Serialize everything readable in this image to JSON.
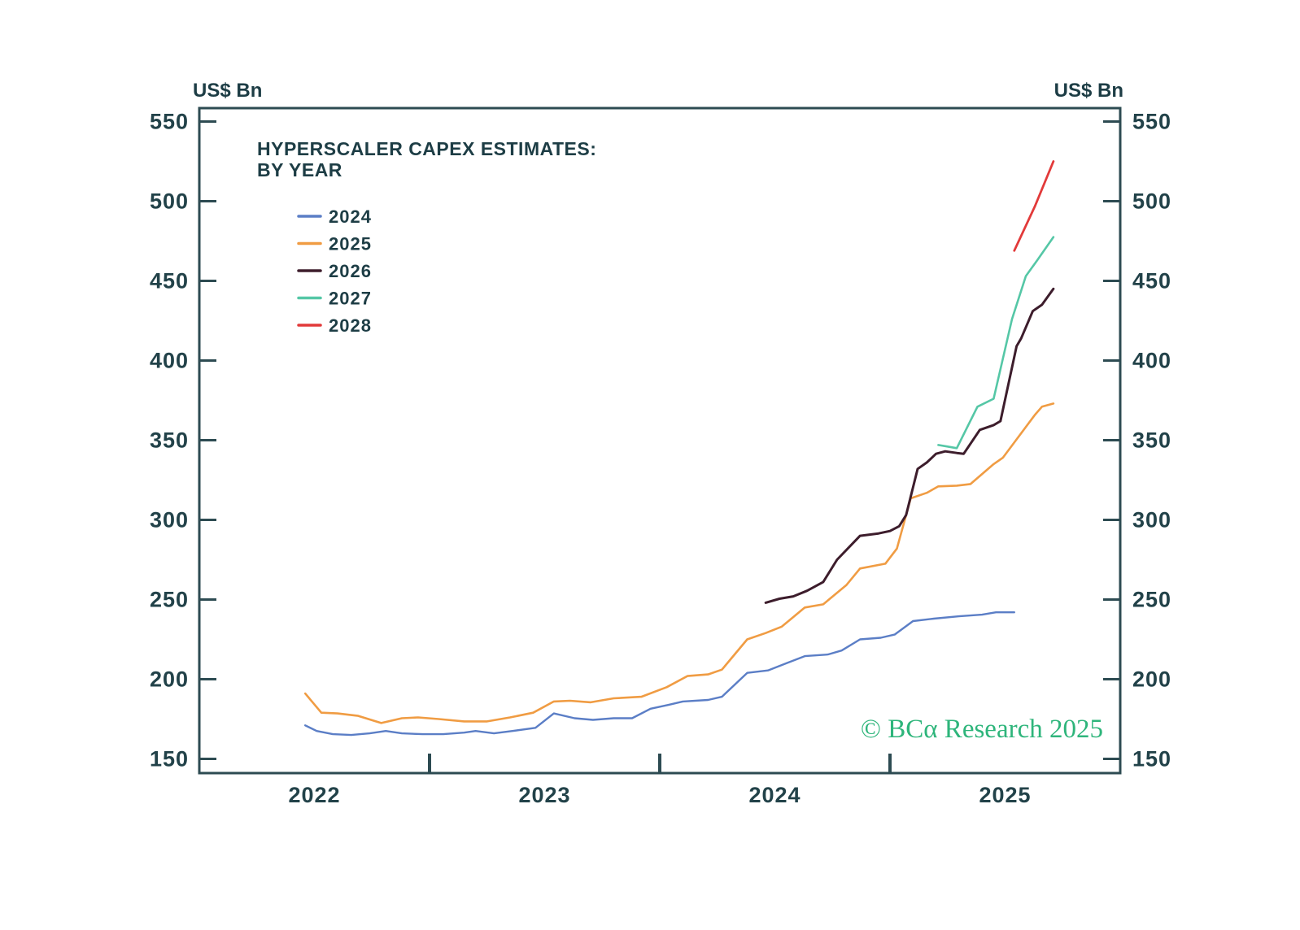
{
  "chart_data": {
    "type": "line",
    "title": "HYPERSCALER CAPEX ESTIMATES:",
    "subtitle": "BY YEAR",
    "ylabel": "US$ Bn",
    "watermark": "© BCα Research 2025",
    "ylim": [
      150,
      550
    ],
    "xlim": [
      2022,
      2026
    ],
    "yticks": [
      150,
      200,
      250,
      300,
      350,
      400,
      450,
      500,
      550
    ],
    "xtick_boundaries": [
      2023,
      2024,
      2025
    ],
    "xtick_labels": [
      {
        "label": "2022",
        "x": 2022.5
      },
      {
        "label": "2023",
        "x": 2023.5
      },
      {
        "label": "2024",
        "x": 2024.5
      },
      {
        "label": "2025",
        "x": 2025.5
      }
    ],
    "grid": false,
    "legend_position": "upper-left-inside",
    "colors": {
      "axis": "#2d4b52",
      "text": "#1d3d45",
      "watermark_green": "#2eb57b"
    },
    "series": [
      {
        "name": "2024",
        "color": "#5b7ec6",
        "width": 2.4,
        "points": [
          [
            2022.46,
            171
          ],
          [
            2022.51,
            167.5
          ],
          [
            2022.58,
            165.5
          ],
          [
            2022.66,
            165
          ],
          [
            2022.74,
            166
          ],
          [
            2022.81,
            167.5
          ],
          [
            2022.88,
            166
          ],
          [
            2022.97,
            165.5
          ],
          [
            2023.06,
            165.5
          ],
          [
            2023.15,
            166.5
          ],
          [
            2023.2,
            167.5
          ],
          [
            2023.28,
            166
          ],
          [
            2023.36,
            167.5
          ],
          [
            2023.46,
            169.5
          ],
          [
            2023.54,
            178.5
          ],
          [
            2023.63,
            175.5
          ],
          [
            2023.71,
            174.5
          ],
          [
            2023.8,
            175.5
          ],
          [
            2023.88,
            175.5
          ],
          [
            2023.96,
            181.5
          ],
          [
            2024.04,
            184
          ],
          [
            2024.1,
            186
          ],
          [
            2024.21,
            187
          ],
          [
            2024.27,
            189
          ],
          [
            2024.38,
            204
          ],
          [
            2024.47,
            205.5
          ],
          [
            2024.55,
            210
          ],
          [
            2024.63,
            214.5
          ],
          [
            2024.73,
            215.5
          ],
          [
            2024.79,
            218
          ],
          [
            2024.87,
            225
          ],
          [
            2024.96,
            226
          ],
          [
            2025.02,
            228
          ],
          [
            2025.1,
            236.5
          ],
          [
            2025.19,
            238
          ],
          [
            2025.3,
            239.5
          ],
          [
            2025.4,
            240.5
          ],
          [
            2025.46,
            242
          ],
          [
            2025.54,
            242
          ]
        ]
      },
      {
        "name": "2025",
        "color": "#f09c43",
        "width": 2.6,
        "points": [
          [
            2022.46,
            191
          ],
          [
            2022.53,
            179
          ],
          [
            2022.6,
            178.5
          ],
          [
            2022.69,
            177
          ],
          [
            2022.79,
            172.5
          ],
          [
            2022.88,
            175.5
          ],
          [
            2022.95,
            176
          ],
          [
            2023.04,
            175
          ],
          [
            2023.15,
            173.5
          ],
          [
            2023.25,
            173.5
          ],
          [
            2023.35,
            176
          ],
          [
            2023.45,
            179
          ],
          [
            2023.54,
            186
          ],
          [
            2023.61,
            186.5
          ],
          [
            2023.7,
            185.5
          ],
          [
            2023.8,
            188
          ],
          [
            2023.92,
            189
          ],
          [
            2024.03,
            195
          ],
          [
            2024.12,
            202
          ],
          [
            2024.21,
            203
          ],
          [
            2024.27,
            206
          ],
          [
            2024.38,
            225
          ],
          [
            2024.46,
            229
          ],
          [
            2024.53,
            233
          ],
          [
            2024.63,
            245
          ],
          [
            2024.71,
            247
          ],
          [
            2024.81,
            259
          ],
          [
            2024.87,
            269.5
          ],
          [
            2024.98,
            272.5
          ],
          [
            2025.03,
            282
          ],
          [
            2025.09,
            313.5
          ],
          [
            2025.16,
            317
          ],
          [
            2025.21,
            321
          ],
          [
            2025.29,
            321.5
          ],
          [
            2025.35,
            322.5
          ],
          [
            2025.45,
            335
          ],
          [
            2025.49,
            339
          ],
          [
            2025.55,
            350.5
          ],
          [
            2025.63,
            366
          ],
          [
            2025.66,
            371
          ],
          [
            2025.71,
            373
          ]
        ]
      },
      {
        "name": "2026",
        "color": "#3d1d2c",
        "width": 3.0,
        "points": [
          [
            2024.46,
            248
          ],
          [
            2024.52,
            250.5
          ],
          [
            2024.58,
            252
          ],
          [
            2024.64,
            255.5
          ],
          [
            2024.71,
            261
          ],
          [
            2024.77,
            275
          ],
          [
            2024.87,
            290
          ],
          [
            2024.95,
            291.5
          ],
          [
            2025.0,
            293
          ],
          [
            2025.04,
            296
          ],
          [
            2025.07,
            303
          ],
          [
            2025.12,
            332
          ],
          [
            2025.16,
            336
          ],
          [
            2025.2,
            341.5
          ],
          [
            2025.24,
            343
          ],
          [
            2025.29,
            342
          ],
          [
            2025.32,
            341.5
          ],
          [
            2025.39,
            356.5
          ],
          [
            2025.45,
            359.5
          ],
          [
            2025.48,
            362
          ],
          [
            2025.55,
            409
          ],
          [
            2025.57,
            414
          ],
          [
            2025.62,
            431
          ],
          [
            2025.66,
            435
          ],
          [
            2025.71,
            445
          ]
        ]
      },
      {
        "name": "2027",
        "color": "#55c7a6",
        "width": 2.6,
        "points": [
          [
            2025.21,
            347
          ],
          [
            2025.25,
            346
          ],
          [
            2025.29,
            345
          ],
          [
            2025.38,
            371
          ],
          [
            2025.45,
            376
          ],
          [
            2025.53,
            426
          ],
          [
            2025.59,
            453
          ],
          [
            2025.64,
            463
          ],
          [
            2025.71,
            477.5
          ]
        ]
      },
      {
        "name": "2028",
        "color": "#e23a3a",
        "width": 2.8,
        "points": [
          [
            2025.54,
            469
          ],
          [
            2025.63,
            497
          ],
          [
            2025.71,
            525
          ]
        ]
      }
    ]
  }
}
